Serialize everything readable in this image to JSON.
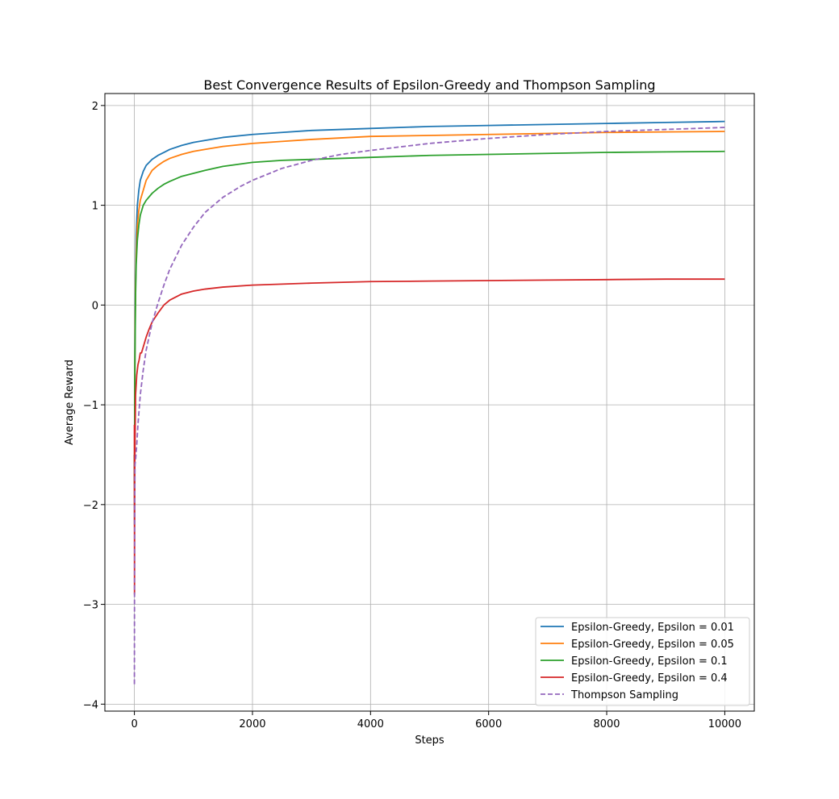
{
  "chart_data": {
    "type": "line",
    "title": "Best Convergence Results of Epsilon-Greedy and Thompson Sampling",
    "xlabel": "Steps",
    "ylabel": "Average Reward",
    "xlim": [
      -500,
      10500
    ],
    "ylim": [
      -4.07,
      2.12
    ],
    "xticks": [
      0,
      2000,
      4000,
      6000,
      8000,
      10000
    ],
    "xtick_labels": [
      "0",
      "2000",
      "4000",
      "6000",
      "8000",
      "10000"
    ],
    "yticks": [
      -4,
      -3,
      -2,
      -1,
      0,
      1,
      2
    ],
    "ytick_labels": [
      "−4",
      "−3",
      "−2",
      "−1",
      "0",
      "1",
      "2"
    ],
    "grid": true,
    "legend_position": "lower-right",
    "series": [
      {
        "name": "Epsilon-Greedy, Epsilon = 0.01",
        "color": "#1f77b4",
        "dash": "solid",
        "x": [
          0,
          2,
          5,
          10,
          20,
          30,
          50,
          75,
          100,
          150,
          200,
          300,
          400,
          500,
          600,
          800,
          1000,
          1200,
          1500,
          2000,
          2500,
          3000,
          4000,
          5000,
          6000,
          7000,
          8000,
          9000,
          10000
        ],
        "y": [
          -1.5,
          -2.2,
          -1.2,
          -0.3,
          0.3,
          0.7,
          1.0,
          1.15,
          1.25,
          1.34,
          1.4,
          1.46,
          1.5,
          1.53,
          1.56,
          1.6,
          1.63,
          1.65,
          1.68,
          1.71,
          1.73,
          1.75,
          1.77,
          1.79,
          1.8,
          1.81,
          1.82,
          1.83,
          1.84
        ]
      },
      {
        "name": "Epsilon-Greedy, Epsilon = 0.05",
        "color": "#ff7f0e",
        "dash": "solid",
        "x": [
          0,
          2,
          5,
          10,
          20,
          30,
          50,
          75,
          100,
          150,
          200,
          300,
          400,
          500,
          600,
          800,
          1000,
          1200,
          1500,
          2000,
          2500,
          3000,
          4000,
          5000,
          6000,
          7000,
          8000,
          9000,
          10000
        ],
        "y": [
          -1.5,
          -2.0,
          -1.0,
          -0.4,
          0.2,
          0.5,
          0.8,
          0.95,
          1.05,
          1.15,
          1.25,
          1.35,
          1.4,
          1.44,
          1.47,
          1.51,
          1.54,
          1.56,
          1.59,
          1.62,
          1.64,
          1.66,
          1.69,
          1.7,
          1.71,
          1.72,
          1.73,
          1.735,
          1.74
        ]
      },
      {
        "name": "Epsilon-Greedy, Epsilon = 0.1",
        "color": "#2ca02c",
        "dash": "solid",
        "x": [
          0,
          2,
          5,
          10,
          20,
          30,
          50,
          75,
          100,
          150,
          200,
          300,
          400,
          500,
          600,
          800,
          1000,
          1200,
          1500,
          2000,
          2500,
          3000,
          4000,
          5000,
          6000,
          7000,
          8000,
          9000,
          10000
        ],
        "y": [
          -1.5,
          -1.8,
          -1.0,
          -0.5,
          0.1,
          0.4,
          0.65,
          0.8,
          0.9,
          1.0,
          1.05,
          1.12,
          1.17,
          1.21,
          1.24,
          1.29,
          1.32,
          1.35,
          1.39,
          1.43,
          1.45,
          1.46,
          1.48,
          1.5,
          1.51,
          1.52,
          1.53,
          1.535,
          1.54
        ]
      },
      {
        "name": "Epsilon-Greedy, Epsilon = 0.4",
        "color": "#d62728",
        "dash": "solid",
        "x": [
          0,
          2,
          5,
          10,
          20,
          40,
          60,
          80,
          100,
          120,
          150,
          200,
          250,
          300,
          400,
          500,
          600,
          800,
          1000,
          1200,
          1500,
          2000,
          2500,
          3000,
          4000,
          5000,
          6000,
          7000,
          8000,
          9000,
          10000
        ],
        "y": [
          -1.2,
          -2.9,
          -1.7,
          -1.4,
          -0.9,
          -0.7,
          -0.6,
          -0.55,
          -0.48,
          -0.48,
          -0.42,
          -0.32,
          -0.24,
          -0.17,
          -0.08,
          0.0,
          0.05,
          0.11,
          0.14,
          0.16,
          0.18,
          0.2,
          0.21,
          0.22,
          0.235,
          0.24,
          0.245,
          0.25,
          0.255,
          0.26,
          0.26
        ]
      },
      {
        "name": "Thompson Sampling",
        "color": "#9467bd",
        "dash": "dashed",
        "x": [
          0,
          2,
          5,
          10,
          20,
          40,
          60,
          80,
          100,
          150,
          200,
          300,
          400,
          500,
          600,
          800,
          1000,
          1200,
          1500,
          1800,
          2000,
          2500,
          3000,
          3500,
          4000,
          5000,
          6000,
          7000,
          8000,
          9000,
          10000
        ],
        "y": [
          -3.8,
          -2.8,
          -2.0,
          -1.6,
          -1.55,
          -1.4,
          -1.2,
          -1.05,
          -0.9,
          -0.65,
          -0.45,
          -0.18,
          0.02,
          0.2,
          0.36,
          0.6,
          0.78,
          0.93,
          1.08,
          1.19,
          1.25,
          1.37,
          1.45,
          1.51,
          1.55,
          1.62,
          1.67,
          1.71,
          1.74,
          1.76,
          1.78
        ]
      }
    ]
  }
}
